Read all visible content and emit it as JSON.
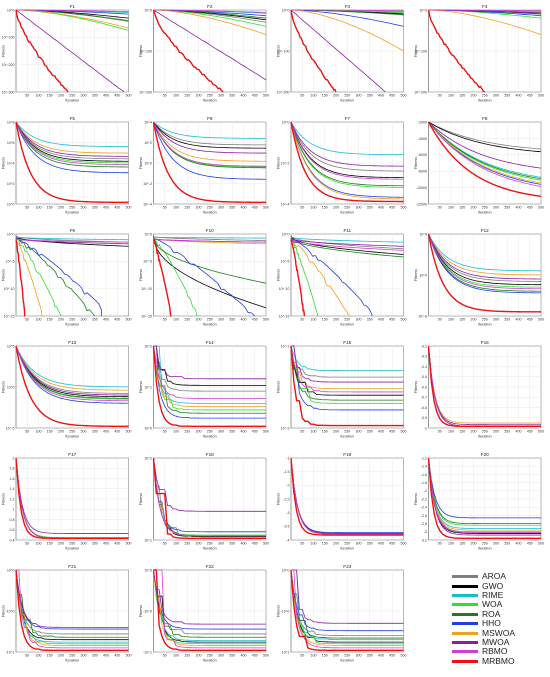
{
  "chart_data": {
    "type": "line",
    "xlabel": "Iteration",
    "ylabel": "Fitness",
    "x_ticks": [
      50,
      100,
      150,
      200,
      250,
      300,
      350,
      400,
      450,
      500
    ],
    "algorithms": [
      {
        "name": "AROA",
        "color": "#7f7f7f"
      },
      {
        "name": "GWO",
        "color": "#000000"
      },
      {
        "name": "RIME",
        "color": "#17becf"
      },
      {
        "name": "WOA",
        "color": "#33dd33"
      },
      {
        "name": "ROA",
        "color": "#1a7f1a"
      },
      {
        "name": "HHO",
        "color": "#1f3fdf"
      },
      {
        "name": "MSWOA",
        "color": "#f0a020"
      },
      {
        "name": "MWOA",
        "color": "#8b1fa0"
      },
      {
        "name": "RBMO",
        "color": "#d040d0"
      },
      {
        "name": "MRBMO",
        "color": "#ee1111"
      }
    ],
    "panels": [
      {
        "id": "F1",
        "kind": "log-drop",
        "yticks": [
          "10^0",
          "10^-100",
          "10^-200",
          "10^-300"
        ],
        "curves": {
          "AROA": [
            1,
            0.86
          ],
          "GWO": [
            1,
            0.9
          ],
          "RIME": [
            1,
            0.97
          ],
          "WOA": [
            1,
            0.75
          ],
          "ROA": [
            1,
            0.87
          ],
          "HHO": [
            1,
            0.95
          ],
          "MSWOA": [
            1,
            0.78
          ],
          "MWOA": [
            1,
            0.0
          ],
          "RBMO": [
            1,
            0.98
          ],
          "MRBMO": [
            1,
            0.0
          ]
        },
        "drop_x": {
          "MWOA": 480,
          "MRBMO": 230
        }
      },
      {
        "id": "F2",
        "kind": "log-drop",
        "yticks": [
          "10^0",
          "10^-100",
          "10^-200"
        ],
        "curves": {
          "AROA": [
            1,
            0.85
          ],
          "GWO": [
            1,
            0.88
          ],
          "RIME": [
            1,
            0.96
          ],
          "WOA": [
            1,
            0.8
          ],
          "ROA": [
            1,
            0.9
          ],
          "HHO": [
            1,
            0.93
          ],
          "MSWOA": [
            1,
            0.7
          ],
          "MWOA": [
            1,
            0.15
          ],
          "RBMO": [
            1,
            0.97
          ],
          "MRBMO": [
            1,
            0.0
          ]
        },
        "drop_x": {
          "MWOA": 500,
          "MRBMO": 310
        }
      },
      {
        "id": "F3",
        "kind": "log-drop",
        "yticks": [
          "10^0",
          "10^-100",
          "10^-200"
        ],
        "curves": {
          "AROA": [
            1,
            0.96
          ],
          "GWO": [
            1,
            0.95
          ],
          "RIME": [
            1,
            0.98
          ],
          "WOA": [
            1,
            0.97
          ],
          "ROA": [
            1,
            0.94
          ],
          "HHO": [
            1,
            0.8
          ],
          "MSWOA": [
            1,
            0.5
          ],
          "MWOA": [
            1,
            0.0
          ],
          "RBMO": [
            1,
            0.99
          ],
          "MRBMO": [
            1,
            0.0
          ]
        },
        "drop_x": {
          "MWOA": 420,
          "MRBMO": 200
        }
      },
      {
        "id": "F4",
        "kind": "log-drop",
        "yticks": [
          "10^0",
          "10^-100",
          "10^-200"
        ],
        "curves": {
          "AROA": [
            1,
            0.97
          ],
          "GWO": [
            1,
            0.96
          ],
          "RIME": [
            1,
            0.98
          ],
          "WOA": [
            1,
            0.9
          ],
          "ROA": [
            1,
            0.95
          ],
          "HHO": [
            1,
            0.93
          ],
          "MSWOA": [
            1,
            0.7
          ],
          "MWOA": [
            1,
            0.96
          ],
          "RBMO": [
            1,
            0.99
          ],
          "MRBMO": [
            1,
            0.0
          ]
        },
        "drop_x": {
          "MRBMO": 250
        }
      },
      {
        "id": "F5",
        "kind": "decay",
        "yticks": [
          "10^8",
          "10^6",
          "10^4",
          "10^2",
          "10^0"
        ],
        "final": {
          "AROA": 0.55,
          "GWO": 0.52,
          "RIME": 0.7,
          "WOA": 0.5,
          "ROA": 0.45,
          "HHO": 0.38,
          "MSWOA": 0.62,
          "MWOA": 0.58,
          "RBMO": 0.48,
          "MRBMO": 0.02
        }
      },
      {
        "id": "F6",
        "kind": "decay",
        "yticks": [
          "10^4",
          "10^2",
          "10^0",
          "10^-2",
          "10^-4"
        ],
        "final": {
          "AROA": 0.72,
          "GWO": 0.68,
          "RIME": 0.8,
          "WOA": 0.45,
          "ROA": 0.44,
          "HHO": 0.3,
          "MSWOA": 0.52,
          "MWOA": 0.62,
          "RBMO": 0.46,
          "MRBMO": 0.02
        }
      },
      {
        "id": "F7",
        "kind": "decay",
        "yticks": [
          "10^0",
          "10^-2",
          "10^-4"
        ],
        "final": {
          "AROA": 0.4,
          "GWO": 0.32,
          "RIME": 0.6,
          "WOA": 0.2,
          "ROA": 0.22,
          "HHO": 0.08,
          "MSWOA": 0.06,
          "MWOA": 0.46,
          "RBMO": 0.3,
          "MRBMO": 0.03
        }
      },
      {
        "id": "F8",
        "kind": "decay-linear",
        "yticks": [
          "-2000",
          "-4000",
          "-6000",
          "-8000",
          "-10000",
          "-12000"
        ],
        "final": {
          "AROA": 0.62,
          "GWO": 0.58,
          "RIME": 0.22,
          "WOA": 0.18,
          "ROA": 0.2,
          "HHO": 0.12,
          "MSWOA": 0.14,
          "MWOA": 0.35,
          "RBMO": 0.09,
          "MRBMO": 0.02
        }
      },
      {
        "id": "F9",
        "kind": "plateau-drop",
        "yticks": [
          "10^0",
          "10^-5",
          "10^-10",
          "10^-15"
        ],
        "final": {
          "AROA": 0.9,
          "GWO": 0.85,
          "RIME": 0.93,
          "WOA": 0.0,
          "ROA": 0.0,
          "HHO": 0.12,
          "MSWOA": 0.0,
          "MWOA": 0.88,
          "RBMO": 0.9,
          "MRBMO": 0.0
        },
        "drop_x": {
          "WOA": 200,
          "ROA": 350,
          "HHO": 380,
          "MSWOA": 120,
          "MRBMO": 40
        }
      },
      {
        "id": "F10",
        "kind": "plateau-drop",
        "yticks": [
          "10^0",
          "10^-5",
          "10^-10",
          "10^-15"
        ],
        "final": {
          "AROA": 0.92,
          "GWO": 0.1,
          "RIME": 0.95,
          "WOA": 0.0,
          "ROA": 0.4,
          "HHO": 0.0,
          "MSWOA": 0.88,
          "MWOA": 0.9,
          "RBMO": 0.9,
          "MRBMO": 0.0
        },
        "drop_x": {
          "WOA": 200,
          "HHO": 450,
          "MRBMO": 80
        }
      },
      {
        "id": "F11",
        "kind": "plateau-drop",
        "yticks": [
          "10^0",
          "10^-5",
          "10^-10",
          "10^-15"
        ],
        "final": {
          "AROA": 0.82,
          "GWO": 0.75,
          "RIME": 0.9,
          "WOA": 0.0,
          "ROA": 0.72,
          "HHO": 0.05,
          "MSWOA": 0.0,
          "MWOA": 0.85,
          "RBMO": 0.8,
          "MRBMO": 0.0
        },
        "drop_x": {
          "WOA": 120,
          "HHO": 360,
          "MSWOA": 260,
          "MRBMO": 60
        }
      },
      {
        "id": "F12",
        "kind": "decay",
        "yticks": [
          "10^5",
          "10^0",
          "10^-5"
        ],
        "final": {
          "AROA": 0.42,
          "GWO": 0.38,
          "RIME": 0.55,
          "WOA": 0.35,
          "ROA": 0.3,
          "HHO": 0.28,
          "MSWOA": 0.5,
          "MWOA": 0.45,
          "RBMO": 0.33,
          "MRBMO": 0.05
        }
      },
      {
        "id": "F13",
        "kind": "decay",
        "yticks": [
          "10^5",
          "10^0",
          "10^-5"
        ],
        "final": {
          "AROA": 0.42,
          "GWO": 0.38,
          "RIME": 0.5,
          "WOA": 0.35,
          "ROA": 0.36,
          "HHO": 0.3,
          "MSWOA": 0.46,
          "MWOA": 0.4,
          "RBMO": 0.33,
          "MRBMO": 0.02
        }
      },
      {
        "id": "F14",
        "kind": "step",
        "yticks": [
          "10^2",
          "10^1",
          "10^0"
        ],
        "final": {
          "AROA": 0.45,
          "GWO": 0.52,
          "RIME": 0.3,
          "WOA": 0.22,
          "ROA": 0.18,
          "HHO": 0.12,
          "MSWOA": 0.26,
          "MWOA": 0.6,
          "RBMO": 0.36,
          "MRBMO": 0.02
        }
      },
      {
        "id": "F15",
        "kind": "step",
        "yticks": [
          "10^-2",
          "10^-3"
        ],
        "final": {
          "AROA": 0.62,
          "GWO": 0.4,
          "RIME": 0.7,
          "WOA": 0.3,
          "ROA": 0.34,
          "HHO": 0.22,
          "MSWOA": 0.48,
          "MWOA": 0.56,
          "RBMO": 0.44,
          "MRBMO": 0.03
        }
      },
      {
        "id": "F16",
        "kind": "flat-linear",
        "yticks": [
          "-0.2",
          "-0.3",
          "-0.4",
          "-0.5",
          "-0.6",
          "-0.7",
          "-0.8",
          "-0.9",
          "-1"
        ],
        "final": {
          "AROA": 0.02,
          "GWO": 0.02,
          "RIME": 0.02,
          "WOA": 0.02,
          "ROA": 0.02,
          "HHO": 0.02,
          "MSWOA": 0.06,
          "MWOA": 0.04,
          "RBMO": 0.02,
          "MRBMO": 0.02
        }
      },
      {
        "id": "F17",
        "kind": "flat-linear",
        "yticks": [
          "2",
          "1.8",
          "1.6",
          "1.4",
          "1.2",
          "1",
          "0.8",
          "0.6",
          "0.4"
        ],
        "final": {
          "AROA": 0.02,
          "GWO": 0.02,
          "RIME": 0.02,
          "WOA": 0.03,
          "ROA": 0.02,
          "HHO": 0.02,
          "MSWOA": 0.02,
          "MWOA": 0.08,
          "RBMO": 0.02,
          "MRBMO": 0.02
        }
      },
      {
        "id": "F18",
        "kind": "step",
        "yticks": [
          "10^2",
          "10^1"
        ],
        "final": {
          "AROA": 0.05,
          "GWO": 0.04,
          "RIME": 0.05,
          "WOA": 0.06,
          "ROA": 0.05,
          "HHO": 0.1,
          "MSWOA": 0.05,
          "MWOA": 0.35,
          "RBMO": 0.05,
          "MRBMO": 0.02
        }
      },
      {
        "id": "F19",
        "kind": "flat-linear",
        "yticks": [
          "-1",
          "-1.5",
          "-2",
          "-2.5",
          "-3",
          "-3.5",
          "-4"
        ],
        "final": {
          "AROA": 0.08,
          "GWO": 0.07,
          "RIME": 0.08,
          "WOA": 0.07,
          "ROA": 0.08,
          "HHO": 0.09,
          "MSWOA": 0.07,
          "MWOA": 0.08,
          "RBMO": 0.07,
          "MRBMO": 0.06
        }
      },
      {
        "id": "F20",
        "kind": "flat-linear",
        "yticks": [
          "-1.2",
          "-1.4",
          "-1.6",
          "-1.8",
          "-2",
          "-2.2",
          "-2.4",
          "-2.6",
          "-2.8",
          "-3",
          "-3.2"
        ],
        "final": {
          "AROA": 0.1,
          "GWO": 0.08,
          "RIME": 0.14,
          "WOA": 0.18,
          "ROA": 0.2,
          "HHO": 0.27,
          "MSWOA": 0.12,
          "MWOA": 0.06,
          "RBMO": 0.09,
          "MRBMO": 0.02
        }
      },
      {
        "id": "F21",
        "kind": "step",
        "yticks": [
          "10^0",
          "-10^0",
          "-10^1"
        ],
        "final": {
          "AROA": 0.22,
          "GWO": 0.15,
          "RIME": 0.12,
          "WOA": 0.1,
          "ROA": 0.18,
          "HHO": 0.28,
          "MSWOA": 0.08,
          "MWOA": 0.3,
          "RBMO": 0.05,
          "MRBMO": 0.02
        }
      },
      {
        "id": "F22",
        "kind": "step",
        "yticks": [
          "10^0",
          "-10^0",
          "-10^1"
        ],
        "final": {
          "AROA": 0.22,
          "GWO": 0.12,
          "RIME": 0.14,
          "WOA": 0.1,
          "ROA": 0.18,
          "HHO": 0.28,
          "MSWOA": 0.08,
          "MWOA": 0.34,
          "RBMO": 0.05,
          "MRBMO": 0.02
        }
      },
      {
        "id": "F23",
        "kind": "step",
        "yticks": [
          "10^0",
          "-10^0",
          "-10^1"
        ],
        "final": {
          "AROA": 0.2,
          "GWO": 0.12,
          "RIME": 0.15,
          "WOA": 0.1,
          "ROA": 0.17,
          "HHO": 0.26,
          "MSWOA": 0.08,
          "MWOA": 0.35,
          "RBMO": 0.05,
          "MRBMO": 0.02
        }
      }
    ]
  }
}
